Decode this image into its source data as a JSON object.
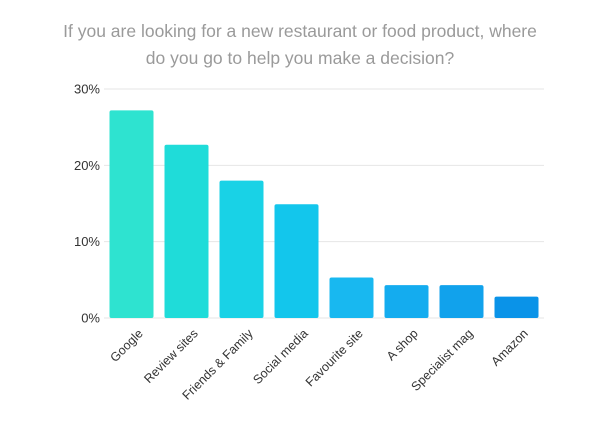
{
  "chart_data": {
    "type": "bar",
    "title_lines": [
      "If you are looking for a new restaurant or food product, where",
      "do you go to help you make a decision?"
    ],
    "categories": [
      "Google",
      "Review sites",
      "Friends & Family",
      "Social media",
      "Favourite site",
      "A shop",
      "Specialist mag",
      "Amazon"
    ],
    "values": [
      27.2,
      22.7,
      18.0,
      14.9,
      5.3,
      4.3,
      4.3,
      2.8
    ],
    "colors": [
      "#2ee3d0",
      "#1fdcd9",
      "#19d2e6",
      "#13c6ec",
      "#18b8f0",
      "#14acef",
      "#11a2ec",
      "#0a93e8"
    ],
    "y_ticks": [
      "0%",
      "10%",
      "20%",
      "30%"
    ],
    "y_tick_values": [
      0,
      10,
      20,
      30
    ],
    "ylim": [
      0,
      30
    ],
    "grid": true,
    "xlabel": "",
    "ylabel": ""
  }
}
